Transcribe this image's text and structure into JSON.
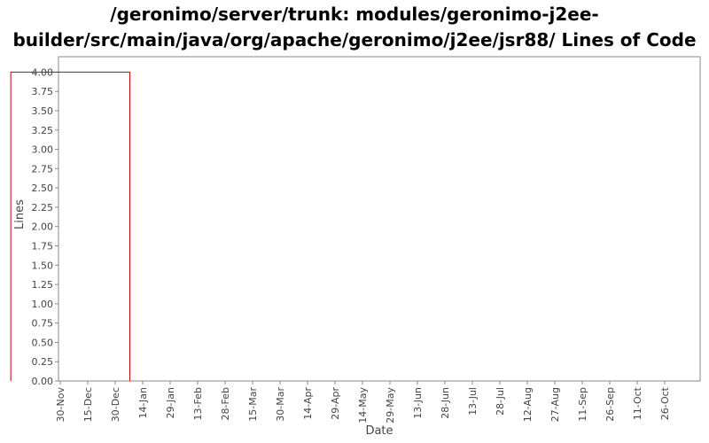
{
  "chart_data": {
    "type": "line",
    "title_lines": [
      "/geronimo/server/trunk: modules/geronimo-j2ee-",
      "builder/src/main/java/org/apache/geronimo/j2ee/jsr88/ Lines of Code"
    ],
    "xlabel": "Date",
    "ylabel": "Lines",
    "x_ticks": [
      "30-Nov",
      "15-Dec",
      "30-Dec",
      "14-Jan",
      "29-Jan",
      "13-Feb",
      "28-Feb",
      "15-Mar",
      "30-Mar",
      "14-Apr",
      "29-Apr",
      "14-May",
      "29-May",
      "13-Jun",
      "28-Jun",
      "13-Jul",
      "28-Jul",
      "12-Aug",
      "27-Aug",
      "11-Sep",
      "26-Sep",
      "11-Oct",
      "26-Oct"
    ],
    "y_ticks": [
      "0.00",
      "0.25",
      "0.50",
      "0.75",
      "1.00",
      "1.25",
      "1.50",
      "1.75",
      "2.00",
      "2.25",
      "2.50",
      "2.75",
      "3.00",
      "3.25",
      "3.50",
      "3.75",
      "4.00"
    ],
    "ylim": [
      0,
      4.2
    ],
    "grid": false,
    "series": [
      {
        "color": "#cc0000",
        "points": [
          {
            "x": "07-Jan",
            "y": 0
          },
          {
            "x": "07-Jan",
            "y": 4
          },
          {
            "x": "03-Nov",
            "y": 4
          },
          {
            "x": "03-Nov",
            "y": 0
          }
        ]
      }
    ]
  }
}
